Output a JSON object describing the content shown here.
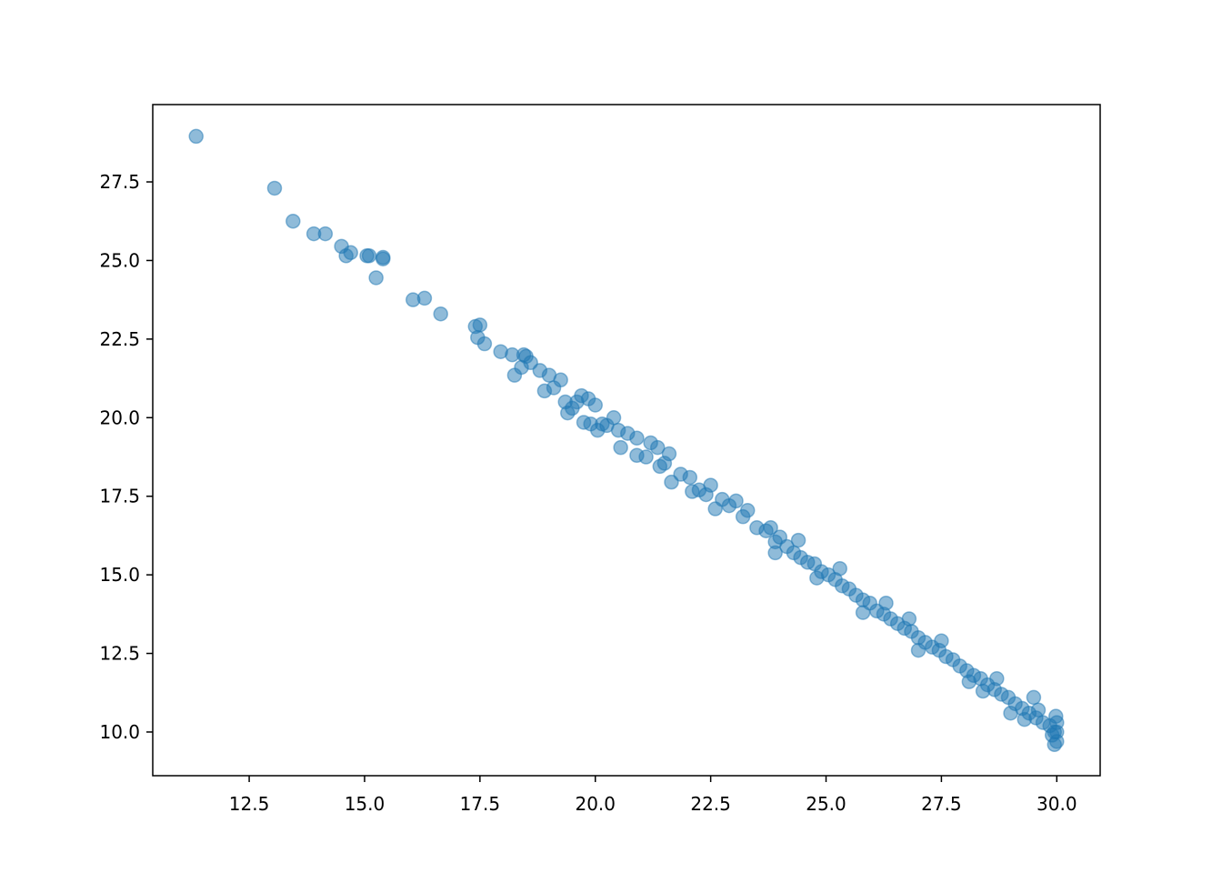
{
  "chart_data": {
    "type": "scatter",
    "color": "#1f77b4",
    "alpha": 0.5,
    "x": [
      11.35,
      13.05,
      13.45,
      13.9,
      14.15,
      14.5,
      14.6,
      14.7,
      15.05,
      15.1,
      15.25,
      15.4,
      15.4,
      16.05,
      16.3,
      16.65,
      17.4,
      17.45,
      17.5,
      17.6,
      17.95,
      18.2,
      18.25,
      18.4,
      18.45,
      18.5,
      18.6,
      18.8,
      18.9,
      19.0,
      19.1,
      19.25,
      19.35,
      19.4,
      19.5,
      19.6,
      19.7,
      19.75,
      19.85,
      19.9,
      20.0,
      20.05,
      20.15,
      20.25,
      20.4,
      20.5,
      20.55,
      20.7,
      20.9,
      20.9,
      21.1,
      21.2,
      21.35,
      21.4,
      21.5,
      21.6,
      21.65,
      21.85,
      22.05,
      22.1,
      22.25,
      22.4,
      22.5,
      22.6,
      22.75,
      22.9,
      23.05,
      23.2,
      23.3,
      23.5,
      23.7,
      23.8,
      23.9,
      24.0,
      24.15,
      24.3,
      24.45,
      24.6,
      24.75,
      24.9,
      25.05,
      25.2,
      25.35,
      25.5,
      25.65,
      25.8,
      25.95,
      26.1,
      26.25,
      26.4,
      26.55,
      26.7,
      26.85,
      27.0,
      27.15,
      27.3,
      27.45,
      27.6,
      27.75,
      27.9,
      28.05,
      28.2,
      28.35,
      28.5,
      28.65,
      28.8,
      28.95,
      29.1,
      29.25,
      29.4,
      29.55,
      29.7,
      29.85,
      29.95,
      30.0,
      30.0,
      29.9,
      29.6,
      29.3,
      28.7,
      28.1,
      27.5,
      27.0,
      26.3,
      25.8,
      25.3,
      24.8,
      24.4,
      23.9,
      26.8,
      28.4,
      29.0,
      29.5,
      30.0,
      29.98,
      29.95
    ],
    "values": [
      28.95,
      27.3,
      26.25,
      25.85,
      25.85,
      25.45,
      25.15,
      25.25,
      25.15,
      25.15,
      24.45,
      25.05,
      25.1,
      23.75,
      23.8,
      23.3,
      22.9,
      22.55,
      22.95,
      22.35,
      22.1,
      22.0,
      21.35,
      21.6,
      22.0,
      21.95,
      21.75,
      21.5,
      20.85,
      21.35,
      20.95,
      21.2,
      20.5,
      20.15,
      20.3,
      20.5,
      20.7,
      19.85,
      20.6,
      19.8,
      20.4,
      19.6,
      19.8,
      19.75,
      20.0,
      19.6,
      19.05,
      19.5,
      19.35,
      18.8,
      18.75,
      19.2,
      19.05,
      18.45,
      18.55,
      18.85,
      17.95,
      18.2,
      18.1,
      17.65,
      17.7,
      17.55,
      17.85,
      17.1,
      17.4,
      17.2,
      17.35,
      16.85,
      17.05,
      16.5,
      16.4,
      16.5,
      16.05,
      16.2,
      15.9,
      15.7,
      15.55,
      15.4,
      15.35,
      15.1,
      15.0,
      14.85,
      14.65,
      14.55,
      14.35,
      14.2,
      14.1,
      13.85,
      13.75,
      13.6,
      13.45,
      13.3,
      13.2,
      13.0,
      12.85,
      12.7,
      12.6,
      12.4,
      12.3,
      12.1,
      11.95,
      11.8,
      11.7,
      11.5,
      11.35,
      11.2,
      11.1,
      10.9,
      10.75,
      10.6,
      10.45,
      10.3,
      10.2,
      10.0,
      10.3,
      9.7,
      9.9,
      10.7,
      10.4,
      11.7,
      11.6,
      12.9,
      12.6,
      14.1,
      13.8,
      15.2,
      14.9,
      16.1,
      15.7,
      13.6,
      11.3,
      10.6,
      11.1,
      10.0,
      10.5,
      9.6
    ],
    "xlim": [
      10.41,
      30.94
    ],
    "xticks": [
      12.5,
      {
        "value": 15,
        "label": "15.0"
      },
      17.5,
      {
        "value": 20,
        "label": "20.0"
      },
      22.5,
      {
        "value": 25,
        "label": "25.0"
      },
      27.5,
      {
        "value": 30,
        "label": "30.0"
      }
    ],
    "ylim": [
      8.61,
      29.96
    ],
    "yticks": [
      {
        "value": 10,
        "label": "10.0"
      },
      12.5,
      {
        "value": 15,
        "label": "15.0"
      },
      17.5,
      {
        "value": 20,
        "label": "20.0"
      },
      22.5,
      {
        "value": 25,
        "label": "25.0"
      },
      27.5
    ],
    "grid": false
  }
}
